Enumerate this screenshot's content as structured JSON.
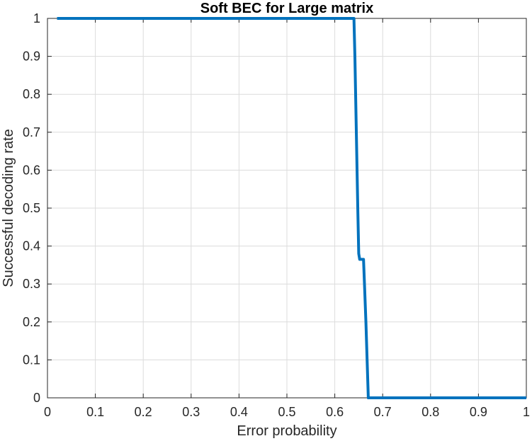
{
  "chart_data": {
    "type": "line",
    "title": "Soft BEC for Large matrix",
    "xlabel": "Error probability",
    "ylabel": "Successful decoding rate",
    "xlim": [
      0,
      1
    ],
    "ylim": [
      0,
      1
    ],
    "grid": true,
    "xticks": [
      "0",
      "0.1",
      "0.2",
      "0.3",
      "0.4",
      "0.5",
      "0.6",
      "0.7",
      "0.8",
      "0.9",
      "1"
    ],
    "yticks": [
      "0",
      "0.1",
      "0.2",
      "0.3",
      "0.4",
      "0.5",
      "0.6",
      "0.7",
      "0.8",
      "0.9",
      "1"
    ],
    "series": [
      {
        "color": "#0072BD",
        "x": [
          0.02,
          0.64,
          0.642,
          0.645,
          0.648,
          0.65,
          0.652,
          0.66,
          0.662,
          0.665,
          0.668,
          0.67,
          0.672,
          0.68,
          0.7,
          0.8,
          0.9,
          1.0
        ],
        "y": [
          1,
          1,
          0.9,
          0.7,
          0.5,
          0.38,
          0.365,
          0.365,
          0.3,
          0.2,
          0.08,
          0.0,
          0.0,
          0.0,
          0.0,
          0.0,
          0.0,
          0.0
        ]
      }
    ]
  }
}
